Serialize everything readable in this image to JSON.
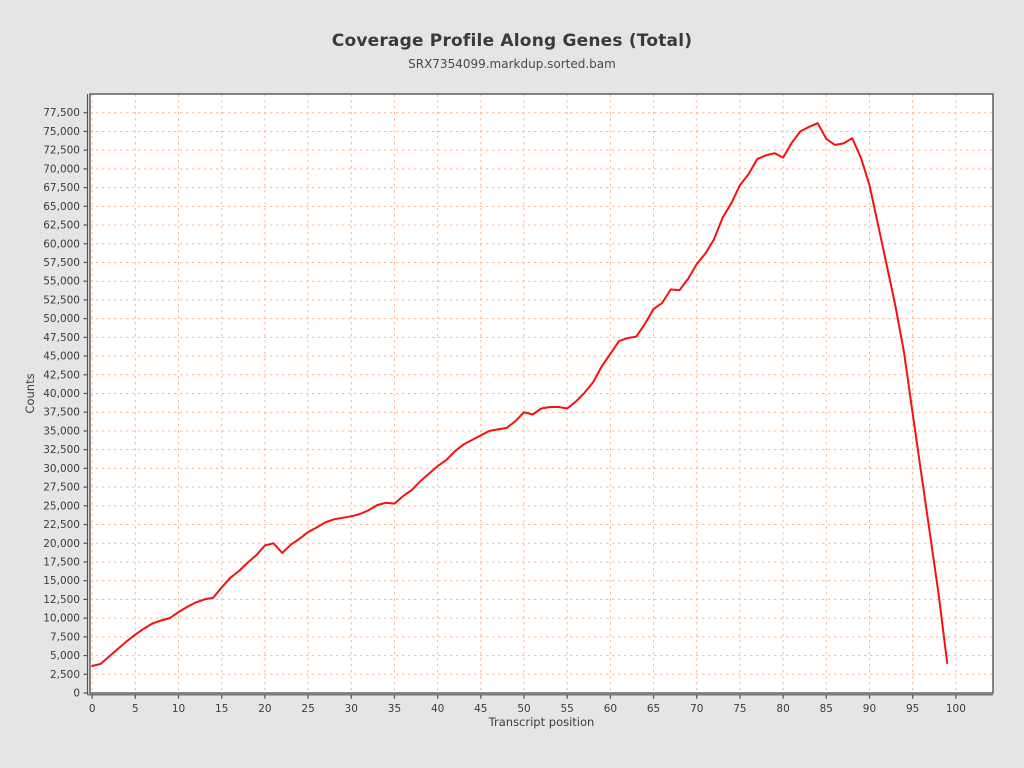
{
  "chart_data": {
    "type": "line",
    "title": "Coverage Profile Along Genes (Total)",
    "subtitle": "SRX7354099.markdup.sorted.bam",
    "xlabel": "Transcript position",
    "ylabel": "Counts",
    "x_range": [
      -0.25,
      104.3
    ],
    "y_range": [
      0,
      80000
    ],
    "grid": true,
    "legend": "none",
    "x_ticks": [
      0,
      5,
      10,
      15,
      20,
      25,
      30,
      35,
      40,
      45,
      50,
      55,
      60,
      65,
      70,
      75,
      80,
      85,
      90,
      95,
      100
    ],
    "y_ticks": [
      0,
      2500,
      5000,
      7500,
      10000,
      12500,
      15000,
      17500,
      20000,
      22500,
      25000,
      27500,
      30000,
      32500,
      35000,
      37500,
      40000,
      42500,
      45000,
      47500,
      50000,
      52500,
      55000,
      57500,
      60000,
      62500,
      65000,
      67500,
      70000,
      72500,
      75000,
      77500
    ],
    "colors": {
      "line": "#f71010",
      "grid": "#f3bb98",
      "axis": "#555555",
      "plot_bg": "#ffffff",
      "page_bg": "#e5e5e5",
      "text": "#3c3c3c",
      "title_text": "#3a3a3a"
    },
    "series": [
      {
        "x_start": 0,
        "x_step": 1,
        "values": [
          3600,
          3900,
          4900,
          5900,
          6900,
          7800,
          8600,
          9300,
          9700,
          10000,
          10800,
          11500,
          12100,
          12500,
          12700,
          14100,
          15400,
          16300,
          17400,
          18400,
          19700,
          20000,
          18700,
          19800,
          20600,
          21500,
          22100,
          22800,
          23200,
          23400,
          23600,
          23900,
          24400,
          25100,
          25400,
          25300,
          26300,
          27100,
          28300,
          29300,
          30300,
          31100,
          32300,
          33200,
          33800,
          34400,
          35000,
          35200,
          35400,
          36300,
          37500,
          37200,
          38000,
          38200,
          38200,
          38000,
          38900,
          40100,
          41500,
          43600,
          45300,
          47000,
          47400,
          47600,
          49300,
          51300,
          52100,
          53900,
          53800,
          55300,
          57300,
          58700,
          60600,
          63500,
          65400,
          67800,
          69300,
          71300,
          71800,
          72100,
          71500,
          73500,
          75000,
          75600,
          76100,
          74000,
          73200,
          73400,
          74100,
          71500,
          67800,
          62500,
          57100,
          51700,
          45500,
          37300,
          29300,
          21300,
          13200,
          4000
        ]
      }
    ]
  }
}
